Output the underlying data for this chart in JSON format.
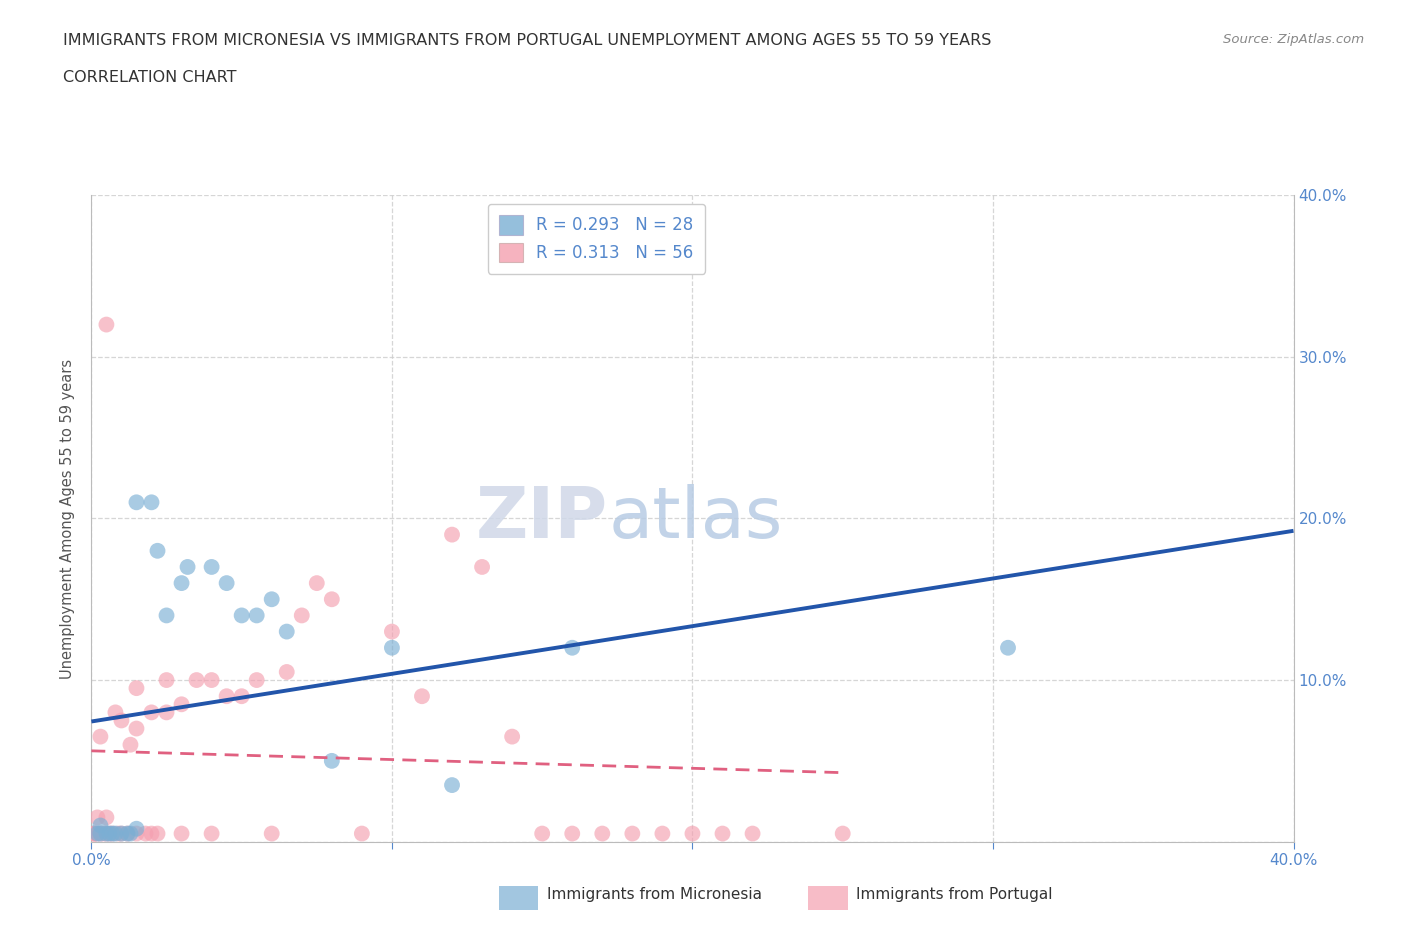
{
  "title_line1": "IMMIGRANTS FROM MICRONESIA VS IMMIGRANTS FROM PORTUGAL UNEMPLOYMENT AMONG AGES 55 TO 59 YEARS",
  "title_line2": "CORRELATION CHART",
  "source": "Source: ZipAtlas.com",
  "ylabel": "Unemployment Among Ages 55 to 59 years",
  "xlim": [
    0.0,
    0.4
  ],
  "ylim": [
    0.0,
    0.4
  ],
  "xtick_values": [
    0.0,
    0.1,
    0.2,
    0.3,
    0.4
  ],
  "ytick_values": [
    0.0,
    0.1,
    0.2,
    0.3,
    0.4
  ],
  "watermark_zip": "ZIP",
  "watermark_atlas": "atlas",
  "micronesia_color": "#7bafd4",
  "portugal_color": "#f4a0b0",
  "micronesia_line_color": "#2255aa",
  "portugal_line_color": "#e06080",
  "R_micronesia": 0.293,
  "N_micronesia": 28,
  "R_portugal": 0.313,
  "N_portugal": 56,
  "micronesia_x": [
    0.002,
    0.003,
    0.005,
    0.006,
    0.007,
    0.008,
    0.01,
    0.012,
    0.013,
    0.015,
    0.015,
    0.02,
    0.022,
    0.025,
    0.03,
    0.032,
    0.04,
    0.045,
    0.05,
    0.055,
    0.06,
    0.065,
    0.08,
    0.1,
    0.12,
    0.16,
    0.305,
    0.003
  ],
  "micronesia_y": [
    0.005,
    0.01,
    0.005,
    0.005,
    0.005,
    0.005,
    0.005,
    0.005,
    0.005,
    0.008,
    0.21,
    0.21,
    0.18,
    0.14,
    0.16,
    0.17,
    0.17,
    0.16,
    0.14,
    0.14,
    0.15,
    0.13,
    0.05,
    0.12,
    0.035,
    0.12,
    0.12,
    0.005
  ],
  "portugal_x": [
    0.001,
    0.002,
    0.003,
    0.004,
    0.005,
    0.005,
    0.006,
    0.007,
    0.008,
    0.009,
    0.01,
    0.01,
    0.012,
    0.013,
    0.015,
    0.015,
    0.015,
    0.018,
    0.02,
    0.02,
    0.022,
    0.025,
    0.025,
    0.03,
    0.03,
    0.035,
    0.04,
    0.04,
    0.045,
    0.05,
    0.055,
    0.06,
    0.065,
    0.07,
    0.075,
    0.08,
    0.09,
    0.1,
    0.11,
    0.12,
    0.13,
    0.14,
    0.15,
    0.16,
    0.17,
    0.18,
    0.19,
    0.2,
    0.21,
    0.22,
    0.25,
    0.005,
    0.003,
    0.002,
    0.001,
    0.001
  ],
  "portugal_y": [
    0.005,
    0.005,
    0.005,
    0.005,
    0.005,
    0.015,
    0.005,
    0.005,
    0.08,
    0.005,
    0.005,
    0.075,
    0.005,
    0.06,
    0.005,
    0.07,
    0.095,
    0.005,
    0.005,
    0.08,
    0.005,
    0.08,
    0.1,
    0.005,
    0.085,
    0.1,
    0.005,
    0.1,
    0.09,
    0.09,
    0.1,
    0.005,
    0.105,
    0.14,
    0.16,
    0.15,
    0.005,
    0.13,
    0.09,
    0.19,
    0.17,
    0.065,
    0.005,
    0.005,
    0.005,
    0.005,
    0.005,
    0.005,
    0.005,
    0.005,
    0.005,
    0.32,
    0.065,
    0.015,
    0.005,
    0.005
  ],
  "grid_color": "#cccccc",
  "axis_label_color": "#5588cc",
  "title_color": "#333333",
  "legend_label_color": "#5588cc"
}
